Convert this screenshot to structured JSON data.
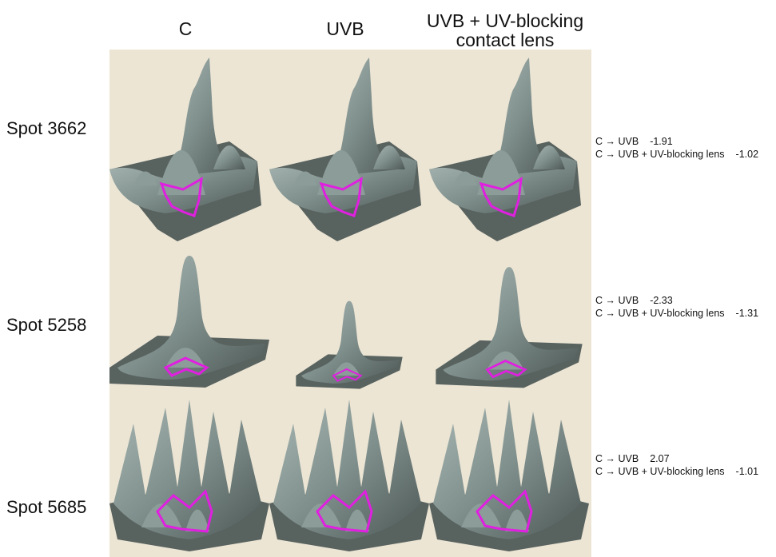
{
  "columns": [
    "C",
    "UVB",
    "UVB + UV-blocking contact lens"
  ],
  "rows": [
    {
      "label": "Spot 3662",
      "comparisons": [
        {
          "label": "C → UVB",
          "value": -1.91
        },
        {
          "label": "C → UVB + UV-blocking lens",
          "value": -1.02
        }
      ]
    },
    {
      "label": "Spot 5258",
      "comparisons": [
        {
          "label": "C → UVB",
          "value": -2.33
        },
        {
          "label": "C → UVB + UV-blocking lens",
          "value": -1.31
        }
      ]
    },
    {
      "label": "Spot 5685",
      "comparisons": [
        {
          "label": "C → UVB",
          "value": 2.07
        },
        {
          "label": "C → UVB + UV-blocking lens",
          "value": -1.01
        }
      ]
    }
  ]
}
